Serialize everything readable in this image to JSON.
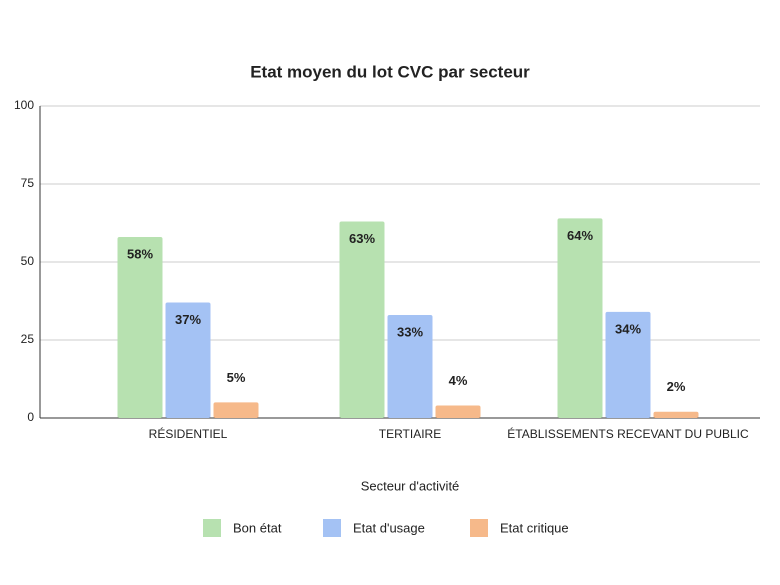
{
  "chart_data": {
    "type": "bar",
    "title": "Etat moyen du lot CVC par secteur",
    "x_label": "Secteur d'activité",
    "categories": [
      "RÉSIDENTIEL",
      "TERTIAIRE",
      "ÉTABLISSEMENTS RECEVANT DU PUBLIC"
    ],
    "series": [
      {
        "name": "Bon état",
        "color": "#b7e1b0",
        "values": [
          58,
          63,
          64
        ],
        "value_labels": [
          "58%",
          "63%",
          "64%"
        ]
      },
      {
        "name": "Etat d'usage",
        "color": "#a4c2f4",
        "values": [
          37,
          33,
          34
        ],
        "value_labels": [
          "37%",
          "33%",
          "34%"
        ]
      },
      {
        "name": "Etat critique",
        "color": "#f6b98a",
        "values": [
          5,
          4,
          2
        ],
        "value_labels": [
          "5%",
          "4%",
          "2%"
        ]
      }
    ],
    "ylim": [
      0,
      100
    ],
    "yticks": [
      0,
      25,
      50,
      75,
      100
    ],
    "grid": true
  }
}
